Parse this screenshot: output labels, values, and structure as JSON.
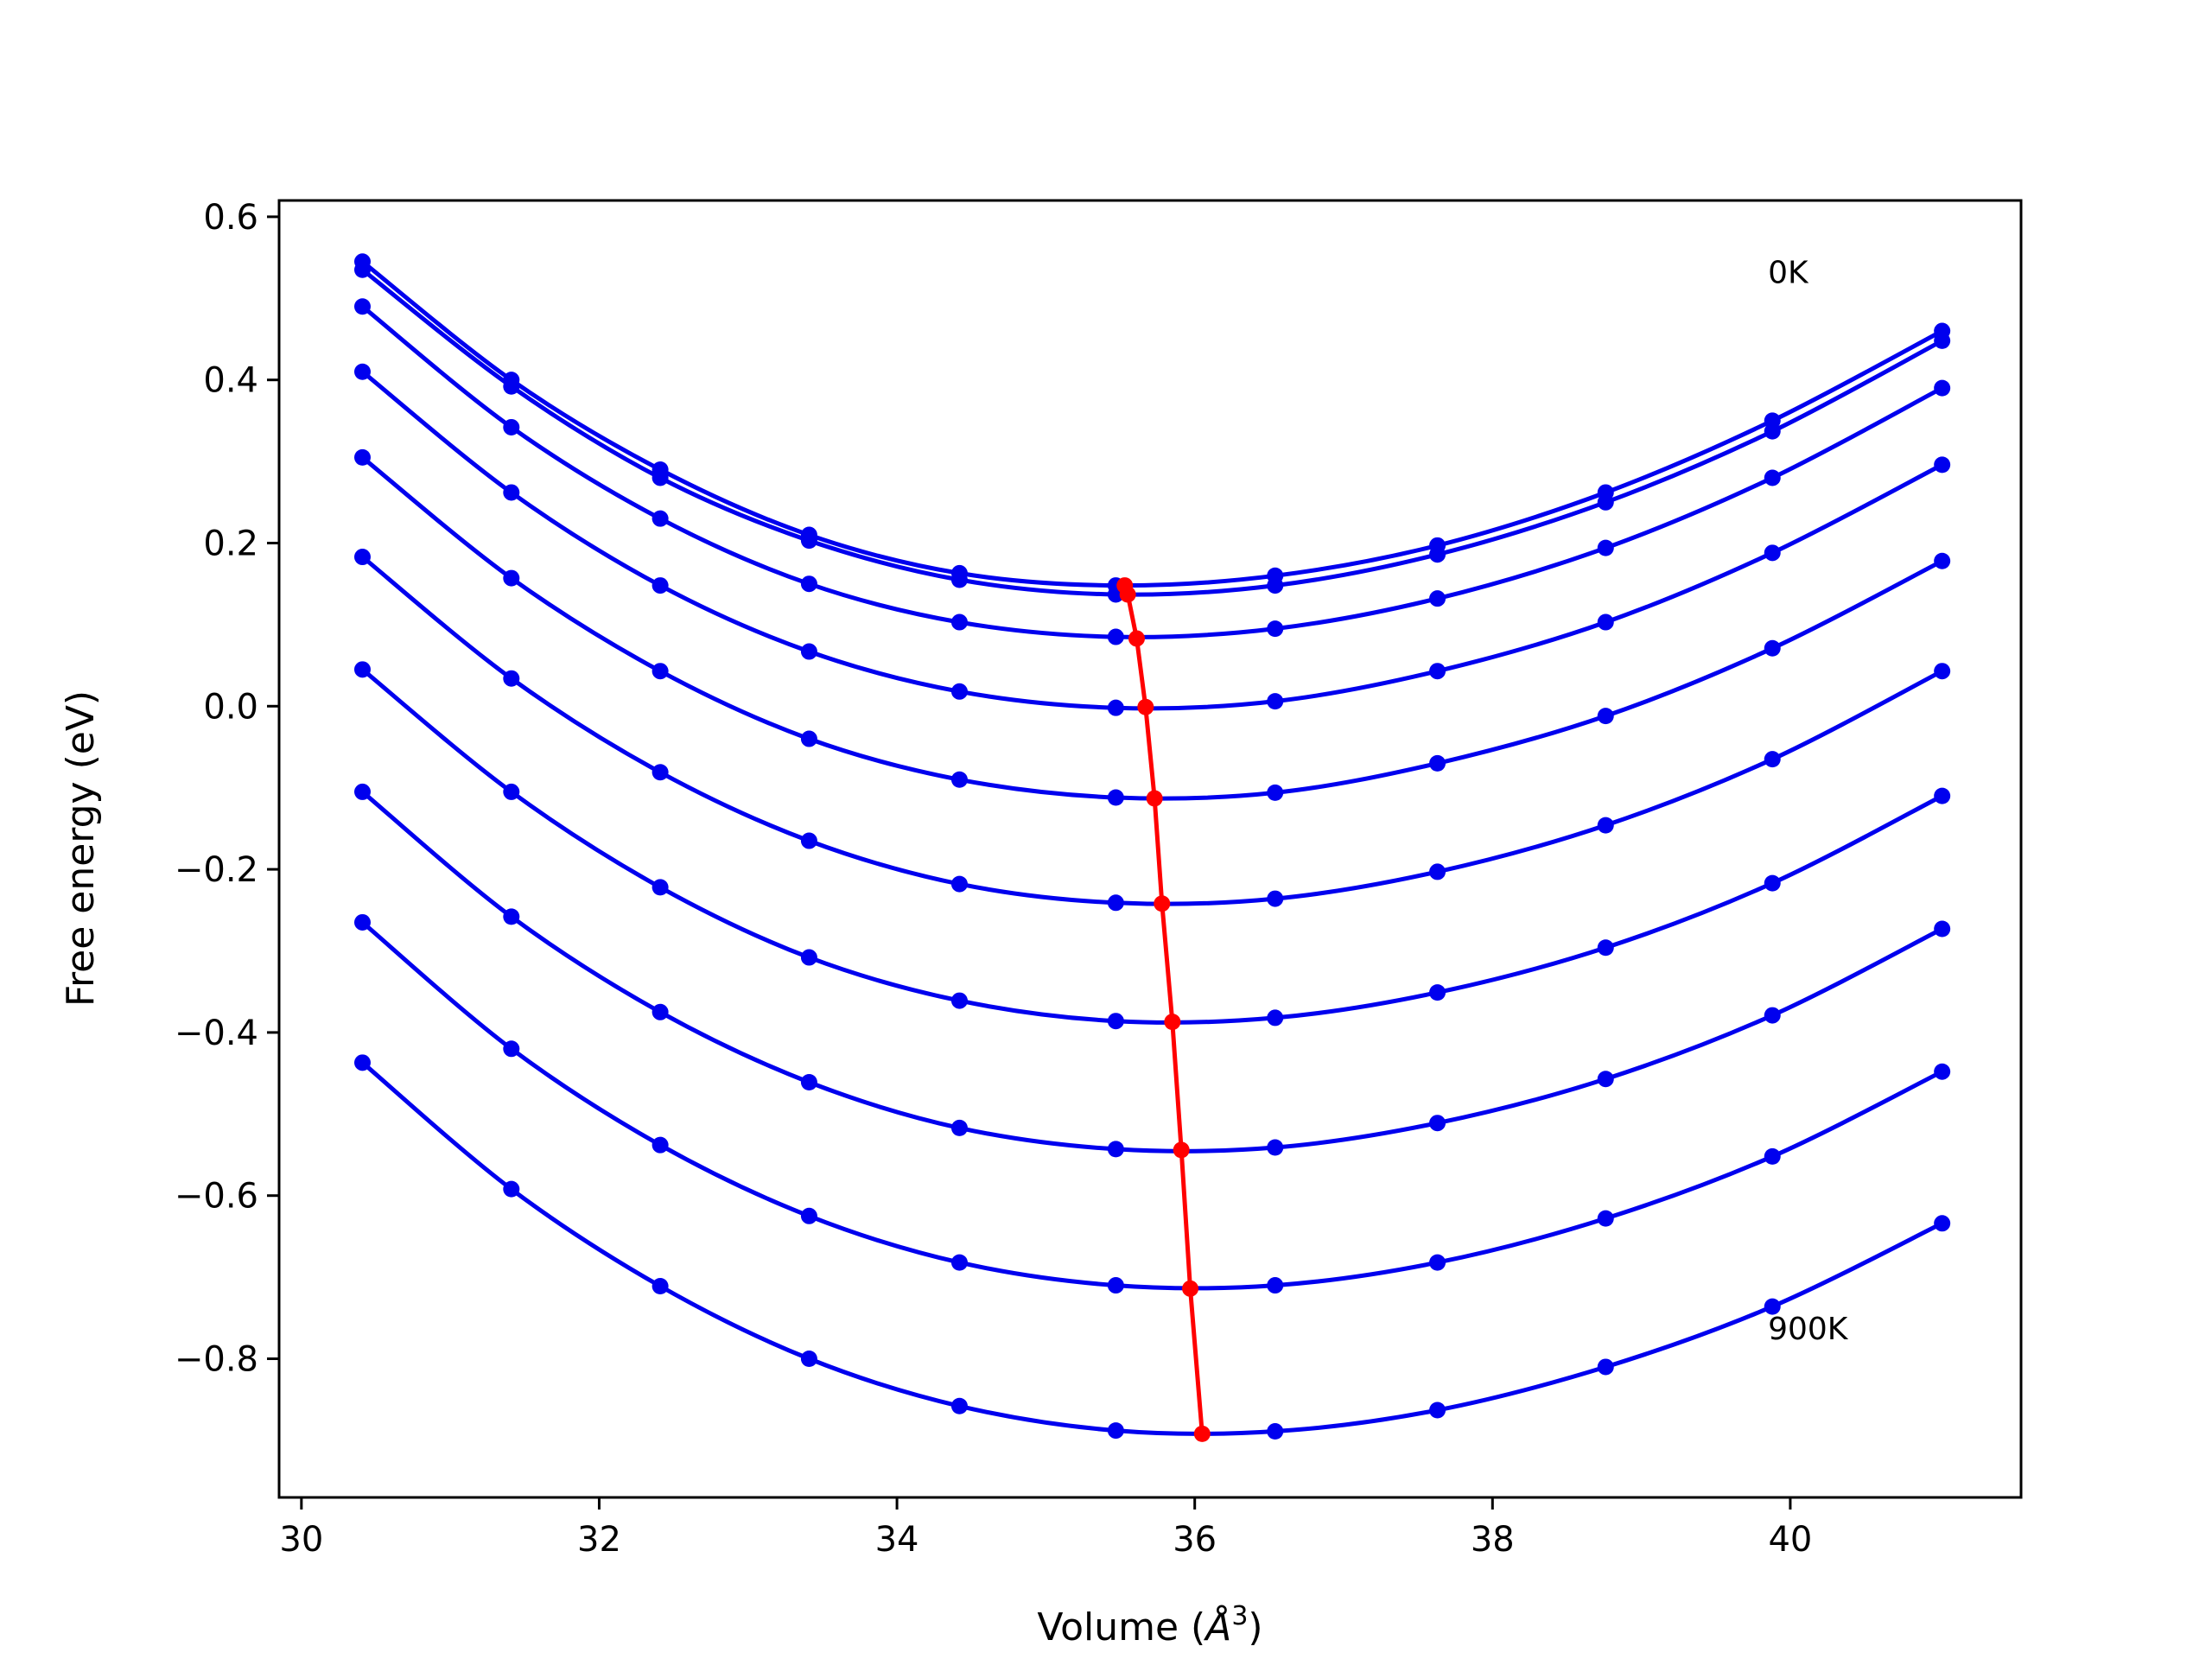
{
  "chart_data": {
    "type": "line",
    "title": "",
    "xlabel": "Volume (",
    "xlabel_symbol": "Å",
    "xlabel_sup": "3",
    "xlabel_close": ")",
    "ylabel": "Free energy (eV)",
    "xlim": [
      29.85,
      41.55
    ],
    "ylim": [
      -0.97,
      0.62
    ],
    "x_ticks": [
      30,
      32,
      34,
      36,
      38,
      40
    ],
    "x_tick_labels": [
      "30",
      "32",
      "34",
      "36",
      "38",
      "40"
    ],
    "y_ticks": [
      0.6,
      0.4,
      0.2,
      0.0,
      -0.2,
      -0.4,
      -0.6,
      -0.8
    ],
    "y_tick_labels": [
      "0.6",
      "0.4",
      "0.2",
      "0.0",
      "−0.2",
      "−0.4",
      "−0.6",
      "−0.8"
    ],
    "grid": false,
    "colors": {
      "curves": "#0000ee",
      "minima": "#ff0000"
    },
    "x": [
      30.41,
      31.41,
      32.41,
      33.41,
      34.42,
      35.47,
      36.54,
      37.63,
      38.76,
      39.88,
      41.02
    ],
    "series": [
      {
        "values": [
          0.545,
          0.4,
          0.29,
          0.21,
          0.163,
          0.148,
          0.16,
          0.197,
          0.262,
          0.35,
          0.46
        ]
      },
      {
        "values": [
          0.535,
          0.392,
          0.28,
          0.203,
          0.155,
          0.137,
          0.148,
          0.186,
          0.25,
          0.337,
          0.448
        ]
      },
      {
        "values": [
          0.49,
          0.342,
          0.23,
          0.15,
          0.103,
          0.085,
          0.095,
          0.132,
          0.194,
          0.28,
          0.39
        ]
      },
      {
        "values": [
          0.41,
          0.262,
          0.148,
          0.067,
          0.018,
          -0.002,
          0.006,
          0.043,
          0.103,
          0.188,
          0.296
        ]
      },
      {
        "values": [
          0.305,
          0.157,
          0.043,
          -0.04,
          -0.09,
          -0.112,
          -0.106,
          -0.07,
          -0.012,
          0.071,
          0.178
        ]
      },
      {
        "values": [
          0.183,
          0.034,
          -0.081,
          -0.165,
          -0.218,
          -0.241,
          -0.236,
          -0.203,
          -0.146,
          -0.065,
          0.043
        ]
      },
      {
        "values": [
          0.045,
          -0.105,
          -0.222,
          -0.308,
          -0.361,
          -0.386,
          -0.382,
          -0.351,
          -0.296,
          -0.217,
          -0.11
        ]
      },
      {
        "values": [
          -0.105,
          -0.258,
          -0.375,
          -0.461,
          -0.517,
          -0.543,
          -0.541,
          -0.511,
          -0.457,
          -0.379,
          -0.273
        ]
      },
      {
        "values": [
          -0.265,
          -0.42,
          -0.538,
          -0.625,
          -0.682,
          -0.71,
          -0.71,
          -0.682,
          -0.628,
          -0.552,
          -0.448
        ]
      },
      {
        "values": [
          -0.437,
          -0.592,
          -0.711,
          -0.8,
          -0.858,
          -0.888,
          -0.889,
          -0.863,
          -0.81,
          -0.736,
          -0.634
        ]
      }
    ],
    "minima": {
      "x": [
        35.53,
        35.55,
        35.61,
        35.67,
        35.73,
        35.78,
        35.85,
        35.91,
        35.97,
        36.05
      ],
      "y": [
        0.148,
        0.137,
        0.083,
        -0.001,
        -0.113,
        -0.242,
        -0.387,
        -0.544,
        -0.714,
        -0.892
      ]
    },
    "annotations": [
      {
        "text": "0K",
        "x": 39.85,
        "y": 0.519
      },
      {
        "text": "900K",
        "x": 39.85,
        "y": -0.776
      }
    ]
  }
}
